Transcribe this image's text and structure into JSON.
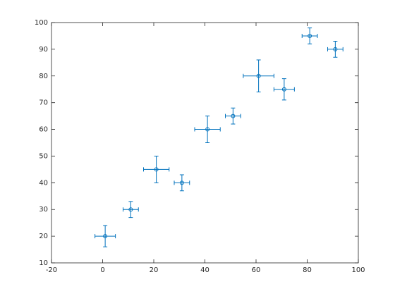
{
  "chart_data": {
    "type": "errorbar",
    "x": [
      1,
      11,
      21,
      31,
      41,
      51,
      61,
      71,
      81,
      91
    ],
    "values": [
      20,
      30,
      45,
      40,
      60,
      65,
      80,
      75,
      95,
      90
    ],
    "xerr": [
      4,
      3,
      5,
      3,
      5,
      3,
      6,
      4,
      3,
      3
    ],
    "yerr": [
      4,
      3,
      5,
      3,
      5,
      3,
      6,
      4,
      3,
      3
    ],
    "color": "#0072bd",
    "xlim": [
      -20,
      100
    ],
    "xticks": [
      -20,
      0,
      20,
      40,
      60,
      80,
      100
    ],
    "ylim": [
      10,
      100
    ],
    "yticks": [
      10,
      20,
      30,
      40,
      50,
      60,
      70,
      80,
      90,
      100
    ],
    "grid": false
  }
}
